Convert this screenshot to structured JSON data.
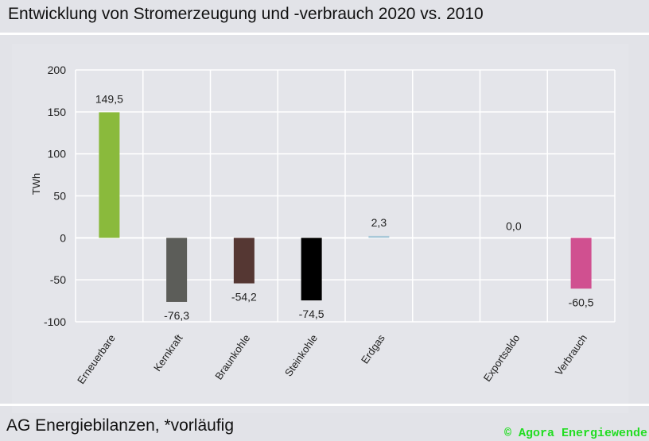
{
  "title": "Entwicklung von Stromerzeugung und -verbrauch 2020 vs. 2010",
  "source": "AG Energiebilanzen, *vorläufig",
  "copyright": "© Agora Energiewende",
  "chart_data": {
    "type": "bar",
    "title": "",
    "xlabel": "",
    "ylabel": "TWh",
    "ylim": [
      -100,
      200
    ],
    "yticks": [
      -100,
      -50,
      0,
      50,
      100,
      150,
      200
    ],
    "grid": true,
    "categories": [
      "Erneuerbare",
      "Kernkraft",
      "Braunkohle",
      "Steinkohle",
      "Erdgas",
      "",
      "Exportsaldo",
      "Verbrauch"
    ],
    "values": [
      149.5,
      -76.3,
      -54.2,
      -74.5,
      2.3,
      null,
      0.0,
      -60.5
    ],
    "data_labels": [
      "149,5",
      "-76,3",
      "-54,2",
      "-74,5",
      "2,3",
      "",
      "0,0",
      "-60,5"
    ],
    "colors": [
      "#8aba3c",
      "#5c5d59",
      "#553733",
      "#000000",
      "#a8c8d8",
      "",
      "#a8c8d8",
      "#d05090"
    ]
  }
}
